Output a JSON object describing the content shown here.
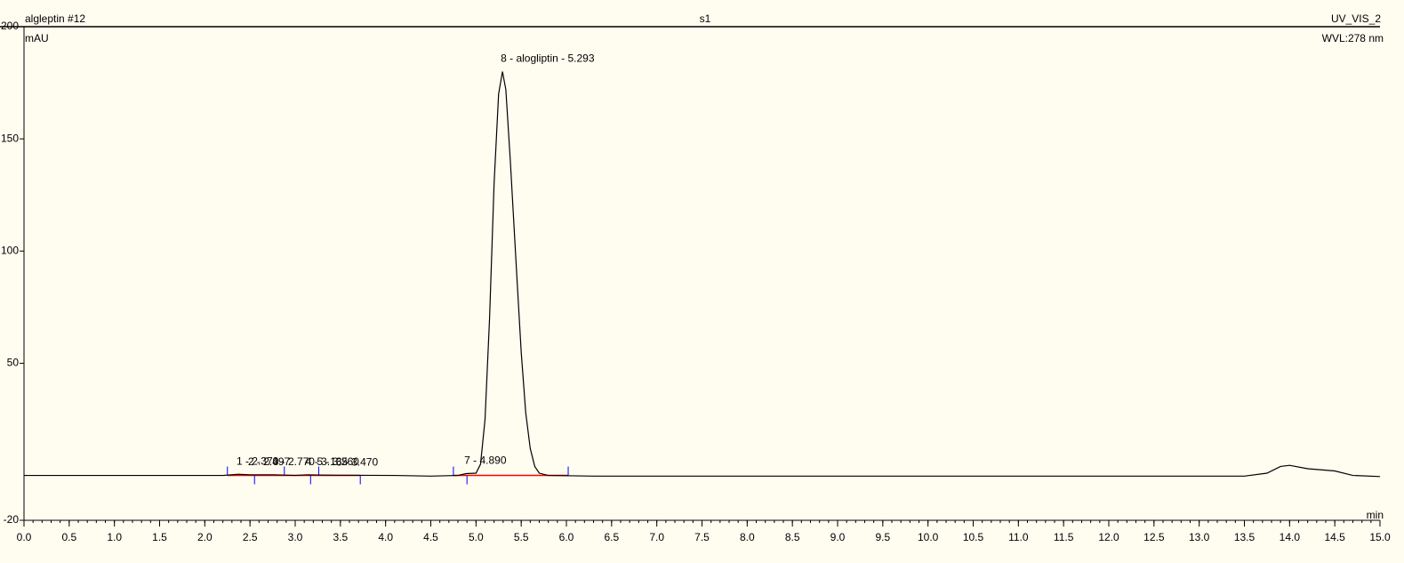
{
  "chart_data": {
    "type": "line",
    "sample_title": "algleptin #12",
    "title": "s1",
    "channel": "UV_VIS_2",
    "wavelength": "WVL:278 nm",
    "y_label": "mAU",
    "x_label": "min",
    "xlim": [
      0,
      15
    ],
    "ylim": [
      -20,
      200
    ],
    "xticks": [
      {
        "value": 0,
        "label": "0.0"
      },
      0.5,
      {
        "value": 1,
        "label": "1.0"
      },
      1.5,
      {
        "value": 2,
        "label": "2.0"
      },
      2.5,
      {
        "value": 3,
        "label": "3.0"
      },
      3.5,
      {
        "value": 4,
        "label": "4.0"
      },
      4.5,
      {
        "value": 5,
        "label": "5.0"
      },
      5.5,
      {
        "value": 6,
        "label": "6.0"
      },
      6.5,
      {
        "value": 7,
        "label": "7.0"
      },
      7.5,
      {
        "value": 8,
        "label": "8.0"
      },
      8.5,
      {
        "value": 9,
        "label": "9.0"
      },
      9.5,
      {
        "value": 10,
        "label": "10.0"
      },
      10.5,
      {
        "value": 11,
        "label": "11.0"
      },
      11.5,
      {
        "value": 12,
        "label": "12.0"
      },
      12.5,
      {
        "value": 13,
        "label": "13.0"
      },
      13.5,
      {
        "value": 14,
        "label": "14.0"
      },
      14.5,
      {
        "value": 15,
        "label": "15.0"
      }
    ],
    "yticks": [
      -20,
      50,
      100,
      150,
      200
    ],
    "series": [
      {
        "name": "UV_VIS_2",
        "color": "#000000",
        "x": [
          0,
          2.2,
          2.37,
          2.5,
          2.77,
          3.0,
          3.135,
          3.26,
          3.47,
          4.1,
          4.5,
          4.8,
          4.89,
          5.0,
          5.05,
          5.1,
          5.15,
          5.2,
          5.25,
          5.293,
          5.33,
          5.38,
          5.45,
          5.5,
          5.55,
          5.6,
          5.65,
          5.7,
          5.8,
          6.3,
          7,
          13.5,
          13.75,
          13.9,
          14.0,
          14.2,
          14.5,
          14.7,
          15.0
        ],
        "values": [
          0,
          0,
          0.5,
          0.3,
          0.3,
          0,
          0.3,
          0.2,
          0.1,
          0,
          -0.3,
          0,
          0.8,
          1,
          5,
          25,
          70,
          130,
          170,
          180,
          172,
          140,
          90,
          55,
          28,
          12,
          4,
          1,
          0,
          -0.3,
          -0.3,
          -0.3,
          1,
          4,
          4.5,
          3,
          2,
          0,
          -0.5
        ]
      }
    ],
    "baselines": [
      {
        "color": "#ff0000",
        "x": [
          2.25,
          3.72
        ]
      },
      {
        "color": "#ff0000",
        "x": [
          4.75,
          6.02
        ]
      }
    ],
    "delimiters": [
      2.25,
      2.55,
      2.88,
      3.17,
      3.26,
      3.72,
      4.75,
      4.9,
      6.02
    ],
    "peak_labels": [
      {
        "text": "1 - 2.370",
        "x": 2.37,
        "y": 0.5
      },
      {
        "text": "2 - 2.497",
        "x": 2.497,
        "y": 0.3
      },
      {
        "text": "3 - 2.770",
        "x": 2.77,
        "y": 0.3
      },
      {
        "text": "4 - 3.135",
        "x": 3.135,
        "y": 0.3
      },
      {
        "text": "5 - 3.260",
        "x": 3.26,
        "y": 0.2
      },
      {
        "text": "6 - 3.470",
        "x": 3.47,
        "y": 0.1
      },
      {
        "text": "7 - 4.890",
        "x": 4.89,
        "y": 0.8
      },
      {
        "text": "8 - alogliptin - 5.293",
        "x": 5.293,
        "y": 180
      }
    ]
  }
}
